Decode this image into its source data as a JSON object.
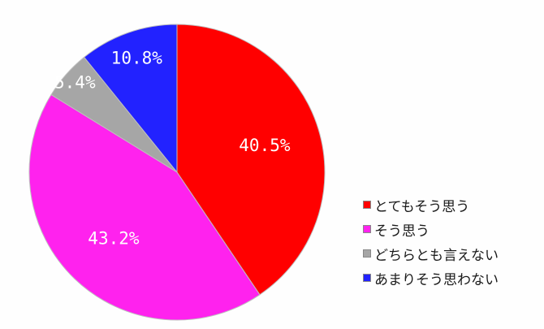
{
  "chart_data": {
    "type": "pie",
    "title": "",
    "categories": [
      "とてもそう思う",
      "そう思う",
      "どちらとも言えない",
      "あまりそう思わない"
    ],
    "values": [
      40.5,
      43.2,
      5.4,
      10.8
    ],
    "value_labels": [
      "40.5%",
      "43.2%",
      "5.4%",
      "10.8%"
    ],
    "colors": [
      "#ff0000",
      "#ff22ee",
      "#a6a6a6",
      "#2222ff"
    ],
    "start_angle_deg": 0,
    "direction": "clockwise",
    "legend_position": "right"
  }
}
